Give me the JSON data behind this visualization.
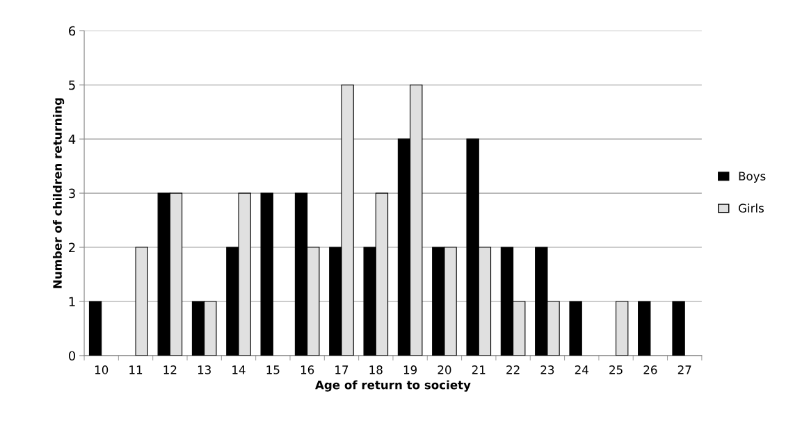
{
  "chart_data": {
    "type": "bar",
    "xlabel": "Age of return to society",
    "ylabel": "Number of children returning",
    "categories": [
      "10",
      "11",
      "12",
      "13",
      "14",
      "15",
      "16",
      "17",
      "18",
      "19",
      "20",
      "21",
      "22",
      "23",
      "24",
      "25",
      "26",
      "27"
    ],
    "series": [
      {
        "name": "Boys",
        "color": "#000000",
        "values": [
          1,
          0,
          3,
          1,
          2,
          3,
          3,
          2,
          2,
          4,
          2,
          4,
          2,
          2,
          1,
          0,
          1,
          1
        ]
      },
      {
        "name": "Girls",
        "color": "#e0e0e0",
        "values": [
          0,
          2,
          3,
          1,
          3,
          0,
          2,
          5,
          3,
          5,
          2,
          2,
          1,
          1,
          0,
          1,
          0,
          0
        ]
      }
    ],
    "ylim": [
      0,
      6
    ],
    "yticks": [
      0,
      1,
      2,
      3,
      4,
      5,
      6
    ],
    "grid": "y",
    "legend": "right"
  }
}
